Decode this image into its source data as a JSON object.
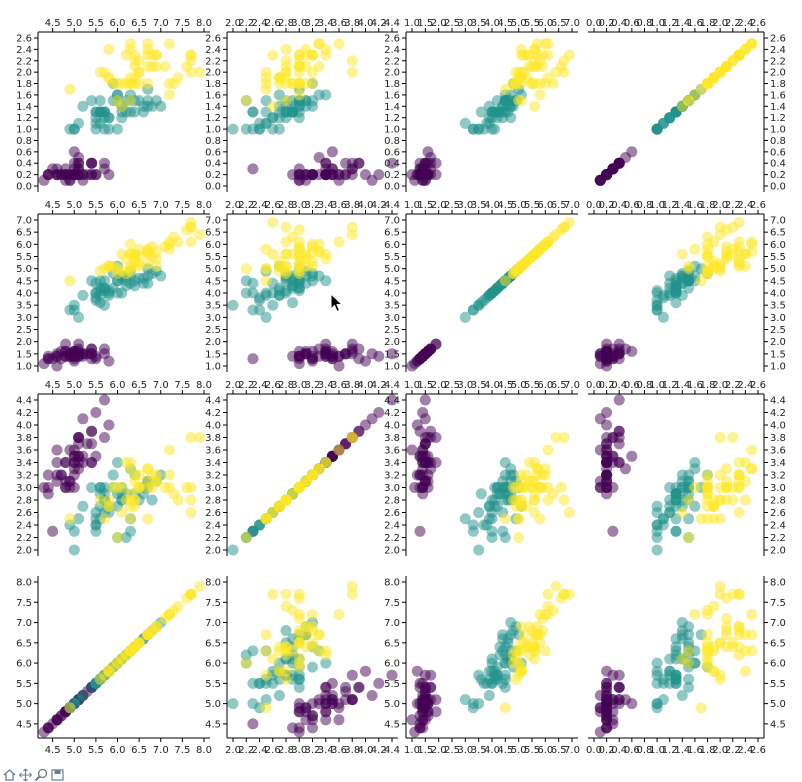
{
  "chart_data": {
    "type": "scatter",
    "title": "",
    "variables": [
      "var0",
      "var1",
      "var2",
      "var3"
    ],
    "ranges": {
      "var0": [
        4.3,
        7.9
      ],
      "var1": [
        2.0,
        4.4
      ],
      "var2": [
        1.0,
        6.9
      ],
      "var3": [
        0.1,
        2.5
      ]
    },
    "tick_labels": {
      "var0_bottom": [
        "4.5",
        "5.0",
        "5.5",
        "6.0",
        "6.5",
        "7.0",
        "7.5",
        "8.0"
      ],
      "var1_bottom": [
        "2.0",
        "2.2",
        "2.4",
        "2.6",
        "2.8",
        "3.0",
        "3.2",
        "3.4",
        "3.6",
        "3.8",
        "4.0",
        "4.2",
        "4.4"
      ],
      "var2_bottom": [
        "1.0",
        "1.5",
        "2.0",
        "2.5",
        "3.0",
        "3.5",
        "4.0",
        "4.5",
        "5.0",
        "5.5",
        "6.0",
        "6.5",
        "7.0"
      ],
      "var3_bottom": [
        "0.0",
        "0.2",
        "0.4",
        "0.6",
        "0.8",
        "1.0",
        "1.2",
        "1.4",
        "1.6",
        "1.8",
        "2.0",
        "2.2",
        "2.4",
        "2.6"
      ],
      "var3_axis": [
        "0.0",
        "0.2",
        "0.4",
        "0.6",
        "0.8",
        "1.0",
        "1.2",
        "1.4",
        "1.6",
        "1.8",
        "2.0",
        "2.2",
        "2.4",
        "2.6"
      ],
      "var2_axis": [
        "1.0",
        "1.5",
        "2.0",
        "2.5",
        "3.0",
        "3.5",
        "4.0",
        "4.5",
        "5.0",
        "5.5",
        "6.0",
        "6.5",
        "7.0"
      ],
      "var1_axis": [
        "2.0",
        "2.2",
        "2.4",
        "2.6",
        "2.8",
        "3.0",
        "3.2",
        "3.4",
        "3.6",
        "3.8",
        "4.0",
        "4.2",
        "4.4"
      ],
      "var0_axis": [
        "4.5",
        "5.0",
        "5.5",
        "6.0",
        "6.5",
        "7.0",
        "7.5",
        "8.0"
      ]
    },
    "grid": false,
    "marker_opacity": 0.5,
    "series": [
      {
        "color": "#440154",
        "points": [
          [
            5.1,
            3.5,
            1.4,
            0.2
          ],
          [
            4.9,
            3.0,
            1.4,
            0.2
          ],
          [
            4.7,
            3.2,
            1.3,
            0.2
          ],
          [
            4.6,
            3.1,
            1.5,
            0.2
          ],
          [
            5.0,
            3.6,
            1.4,
            0.2
          ],
          [
            5.4,
            3.9,
            1.7,
            0.4
          ],
          [
            4.6,
            3.4,
            1.4,
            0.3
          ],
          [
            5.0,
            3.4,
            1.5,
            0.2
          ],
          [
            4.4,
            2.9,
            1.4,
            0.2
          ],
          [
            4.9,
            3.1,
            1.5,
            0.1
          ],
          [
            5.4,
            3.7,
            1.5,
            0.2
          ],
          [
            4.8,
            3.4,
            1.6,
            0.2
          ],
          [
            4.8,
            3.0,
            1.4,
            0.1
          ],
          [
            4.3,
            3.0,
            1.1,
            0.1
          ],
          [
            5.8,
            4.0,
            1.2,
            0.2
          ],
          [
            5.7,
            4.4,
            1.5,
            0.4
          ],
          [
            5.4,
            3.9,
            1.3,
            0.4
          ],
          [
            5.1,
            3.5,
            1.4,
            0.3
          ],
          [
            5.7,
            3.8,
            1.7,
            0.3
          ],
          [
            5.1,
            3.8,
            1.5,
            0.3
          ],
          [
            5.4,
            3.4,
            1.7,
            0.2
          ],
          [
            5.1,
            3.7,
            1.5,
            0.4
          ],
          [
            4.6,
            3.6,
            1.0,
            0.2
          ],
          [
            5.1,
            3.3,
            1.7,
            0.5
          ],
          [
            4.8,
            3.4,
            1.9,
            0.2
          ],
          [
            5.0,
            3.0,
            1.6,
            0.2
          ],
          [
            5.0,
            3.4,
            1.6,
            0.4
          ],
          [
            5.2,
            3.5,
            1.5,
            0.2
          ],
          [
            5.2,
            3.4,
            1.4,
            0.2
          ],
          [
            4.7,
            3.2,
            1.6,
            0.2
          ],
          [
            4.8,
            3.1,
            1.6,
            0.2
          ],
          [
            5.4,
            3.4,
            1.5,
            0.4
          ],
          [
            5.2,
            4.1,
            1.5,
            0.1
          ],
          [
            5.5,
            4.2,
            1.4,
            0.2
          ],
          [
            4.9,
            3.1,
            1.5,
            0.2
          ],
          [
            5.0,
            3.2,
            1.2,
            0.2
          ],
          [
            5.5,
            3.5,
            1.3,
            0.2
          ],
          [
            4.9,
            3.6,
            1.4,
            0.1
          ],
          [
            4.4,
            3.0,
            1.3,
            0.2
          ],
          [
            5.1,
            3.4,
            1.5,
            0.2
          ],
          [
            5.0,
            3.5,
            1.3,
            0.3
          ],
          [
            4.5,
            2.3,
            1.3,
            0.3
          ],
          [
            4.4,
            3.2,
            1.3,
            0.2
          ],
          [
            5.0,
            3.5,
            1.6,
            0.6
          ],
          [
            5.1,
            3.8,
            1.9,
            0.4
          ],
          [
            4.8,
            3.0,
            1.4,
            0.3
          ],
          [
            5.1,
            3.8,
            1.6,
            0.2
          ],
          [
            4.6,
            3.2,
            1.4,
            0.2
          ],
          [
            5.3,
            3.7,
            1.5,
            0.2
          ],
          [
            5.0,
            3.3,
            1.4,
            0.2
          ]
        ]
      },
      {
        "color": "#21918c",
        "points": [
          [
            7.0,
            3.2,
            4.7,
            1.4
          ],
          [
            6.4,
            3.2,
            4.5,
            1.5
          ],
          [
            6.9,
            3.1,
            4.9,
            1.5
          ],
          [
            5.5,
            2.3,
            4.0,
            1.3
          ],
          [
            6.5,
            2.8,
            4.6,
            1.5
          ],
          [
            5.7,
            2.8,
            4.5,
            1.3
          ],
          [
            6.3,
            3.3,
            4.7,
            1.6
          ],
          [
            4.9,
            2.4,
            3.3,
            1.0
          ],
          [
            6.6,
            2.9,
            4.6,
            1.3
          ],
          [
            5.2,
            2.7,
            3.9,
            1.4
          ],
          [
            5.0,
            2.0,
            3.5,
            1.0
          ],
          [
            5.9,
            3.0,
            4.2,
            1.5
          ],
          [
            6.0,
            2.2,
            4.0,
            1.0
          ],
          [
            6.1,
            2.9,
            4.7,
            1.4
          ],
          [
            5.6,
            2.9,
            3.6,
            1.3
          ],
          [
            6.7,
            3.1,
            4.4,
            1.4
          ],
          [
            5.6,
            3.0,
            4.5,
            1.5
          ],
          [
            5.8,
            2.7,
            4.1,
            1.0
          ],
          [
            6.2,
            2.2,
            4.5,
            1.5
          ],
          [
            5.6,
            2.5,
            3.9,
            1.1
          ],
          [
            5.9,
            3.2,
            4.8,
            1.8
          ],
          [
            6.1,
            2.8,
            4.0,
            1.3
          ],
          [
            6.3,
            2.5,
            4.9,
            1.5
          ],
          [
            6.1,
            2.8,
            4.7,
            1.2
          ],
          [
            6.4,
            2.9,
            4.3,
            1.3
          ],
          [
            6.6,
            3.0,
            4.4,
            1.4
          ],
          [
            6.8,
            2.8,
            4.8,
            1.4
          ],
          [
            6.7,
            3.0,
            5.0,
            1.7
          ],
          [
            6.0,
            2.9,
            4.5,
            1.5
          ],
          [
            5.7,
            2.6,
            3.5,
            1.0
          ],
          [
            5.5,
            2.4,
            3.8,
            1.1
          ],
          [
            5.5,
            2.4,
            3.7,
            1.0
          ],
          [
            5.8,
            2.7,
            3.9,
            1.2
          ],
          [
            6.0,
            2.7,
            5.1,
            1.6
          ],
          [
            5.4,
            3.0,
            4.5,
            1.5
          ],
          [
            6.0,
            3.4,
            4.5,
            1.6
          ],
          [
            6.7,
            3.1,
            4.7,
            1.5
          ],
          [
            6.3,
            2.3,
            4.4,
            1.3
          ],
          [
            5.6,
            3.0,
            4.1,
            1.3
          ],
          [
            5.5,
            2.5,
            4.0,
            1.3
          ],
          [
            5.5,
            2.6,
            4.4,
            1.2
          ],
          [
            6.1,
            3.0,
            4.6,
            1.4
          ],
          [
            5.8,
            2.6,
            4.0,
            1.2
          ],
          [
            5.0,
            2.3,
            3.3,
            1.0
          ],
          [
            5.6,
            2.7,
            4.2,
            1.3
          ],
          [
            5.7,
            3.0,
            4.2,
            1.2
          ],
          [
            5.7,
            2.9,
            4.2,
            1.3
          ],
          [
            6.2,
            2.9,
            4.3,
            1.3
          ],
          [
            5.1,
            2.5,
            3.0,
            1.1
          ],
          [
            5.7,
            2.8,
            4.1,
            1.3
          ]
        ]
      },
      {
        "color": "#fde725",
        "points": [
          [
            6.3,
            3.3,
            6.0,
            2.5
          ],
          [
            5.8,
            2.7,
            5.1,
            1.9
          ],
          [
            7.1,
            3.0,
            5.9,
            2.1
          ],
          [
            6.3,
            2.9,
            5.6,
            1.8
          ],
          [
            6.5,
            3.0,
            5.8,
            2.2
          ],
          [
            7.6,
            3.0,
            6.6,
            2.1
          ],
          [
            4.9,
            2.5,
            4.5,
            1.7
          ],
          [
            7.3,
            2.9,
            6.3,
            1.8
          ],
          [
            6.7,
            2.5,
            5.8,
            1.8
          ],
          [
            7.2,
            3.6,
            6.1,
            2.5
          ],
          [
            6.5,
            3.2,
            5.1,
            2.0
          ],
          [
            6.4,
            2.7,
            5.3,
            1.9
          ],
          [
            6.8,
            3.0,
            5.5,
            2.1
          ],
          [
            5.7,
            2.5,
            5.0,
            2.0
          ],
          [
            5.8,
            2.8,
            5.1,
            2.4
          ],
          [
            6.4,
            3.2,
            5.3,
            2.3
          ],
          [
            6.5,
            3.0,
            5.5,
            1.8
          ],
          [
            7.7,
            3.8,
            6.7,
            2.2
          ],
          [
            7.7,
            2.6,
            6.9,
            2.3
          ],
          [
            6.0,
            2.2,
            5.0,
            1.5
          ],
          [
            6.9,
            3.2,
            5.7,
            2.3
          ],
          [
            5.6,
            2.8,
            4.9,
            2.0
          ],
          [
            7.7,
            2.8,
            6.7,
            2.0
          ],
          [
            6.3,
            2.7,
            4.9,
            1.8
          ],
          [
            6.7,
            3.3,
            5.7,
            2.1
          ],
          [
            7.2,
            3.2,
            6.0,
            1.8
          ],
          [
            6.2,
            2.8,
            4.8,
            1.8
          ],
          [
            6.1,
            3.0,
            4.9,
            1.8
          ],
          [
            6.4,
            2.8,
            5.6,
            2.1
          ],
          [
            7.2,
            3.0,
            5.8,
            1.6
          ],
          [
            7.4,
            2.8,
            6.1,
            1.9
          ],
          [
            7.9,
            3.8,
            6.4,
            2.0
          ],
          [
            6.4,
            2.8,
            5.6,
            2.2
          ],
          [
            6.3,
            2.8,
            5.1,
            1.5
          ],
          [
            6.1,
            2.6,
            5.6,
            1.4
          ],
          [
            7.7,
            3.0,
            6.1,
            2.3
          ],
          [
            6.3,
            3.4,
            5.6,
            2.4
          ],
          [
            6.4,
            3.1,
            5.5,
            1.8
          ],
          [
            6.0,
            3.0,
            4.8,
            1.8
          ],
          [
            6.9,
            3.1,
            5.4,
            2.1
          ],
          [
            6.7,
            3.1,
            5.6,
            2.4
          ],
          [
            6.9,
            3.1,
            5.1,
            2.3
          ],
          [
            5.8,
            2.7,
            5.1,
            1.9
          ],
          [
            6.8,
            3.2,
            5.9,
            2.3
          ],
          [
            6.7,
            3.3,
            5.7,
            2.5
          ],
          [
            6.7,
            3.0,
            5.2,
            2.3
          ],
          [
            6.3,
            2.5,
            5.0,
            1.9
          ],
          [
            6.5,
            3.0,
            5.2,
            2.0
          ],
          [
            6.2,
            3.4,
            5.4,
            2.3
          ],
          [
            5.9,
            3.0,
            5.1,
            1.8
          ]
        ]
      }
    ]
  },
  "toolbar": {
    "icons": [
      "home-icon",
      "pan-icon",
      "zoom-icon",
      "save-icon"
    ]
  }
}
